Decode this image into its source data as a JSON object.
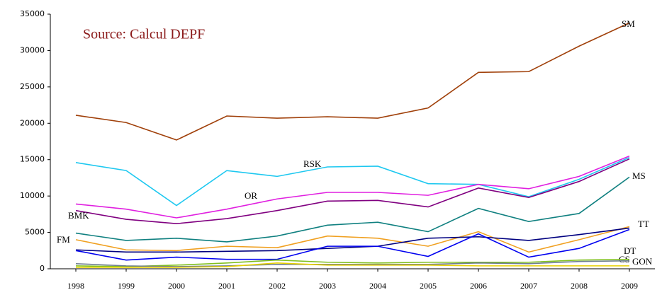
{
  "chart_data": {
    "type": "line",
    "annotation": "Source: Calcul DEPF",
    "categories": [
      "1998",
      "1999",
      "2000",
      "2001",
      "2002",
      "2003",
      "2004",
      "2005",
      "2006",
      "2007",
      "2008",
      "2009"
    ],
    "ylim": [
      0,
      35000
    ],
    "yticks": [
      0,
      5000,
      10000,
      15000,
      20000,
      25000,
      30000,
      35000
    ],
    "grid": false,
    "series": [
      {
        "name": "SM",
        "color": "#a0400a",
        "values": [
          21100,
          20100,
          17700,
          21000,
          20700,
          20900,
          20700,
          22100,
          27000,
          27100,
          30600,
          33800
        ]
      },
      {
        "name": "RSK",
        "color": "#1ec8f0",
        "values": [
          14600,
          13500,
          8700,
          13500,
          12700,
          14000,
          14100,
          11700,
          11600,
          9900,
          12300,
          15300
        ]
      },
      {
        "name": "OR",
        "color": "#e020e0",
        "values": [
          8900,
          8200,
          7000,
          8200,
          9600,
          10500,
          10500,
          10100,
          11600,
          11000,
          12700,
          15500
        ]
      },
      {
        "name": "BMK",
        "color": "#800080",
        "values": [
          8000,
          6800,
          6200,
          6900,
          8000,
          9300,
          9400,
          8500,
          11100,
          9800,
          12000,
          15100
        ]
      },
      {
        "name": "MS",
        "color": "#108080",
        "values": [
          4900,
          3900,
          4200,
          3700,
          4500,
          6000,
          6400,
          5100,
          8300,
          6500,
          7600,
          12600
        ]
      },
      {
        "name": "FM",
        "color": "#f0a020",
        "values": [
          4000,
          2600,
          2500,
          3100,
          2900,
          4500,
          4200,
          3100,
          5100,
          2300,
          4000,
          5800
        ]
      },
      {
        "name": "TT",
        "color": "#000080",
        "values": [
          2600,
          2300,
          2300,
          2400,
          2500,
          2800,
          3100,
          4200,
          4400,
          3900,
          4700,
          5600
        ]
      },
      {
        "name": "CS",
        "color": "#0000f0",
        "values": [
          2500,
          1200,
          1600,
          1300,
          1300,
          3100,
          3100,
          1700,
          4800,
          1600,
          2800,
          5400
        ]
      },
      {
        "name": "DT",
        "color": "#80c020",
        "values": [
          400,
          300,
          500,
          800,
          1200,
          900,
          800,
          900,
          900,
          900,
          1200,
          1300
        ]
      },
      {
        "name": "GON",
        "color": "#708090",
        "values": [
          700,
          400,
          300,
          400,
          600,
          600,
          600,
          600,
          800,
          700,
          1000,
          1100
        ]
      },
      {
        "color": "#e8d000",
        "values": [
          200,
          200,
          200,
          300,
          800,
          500,
          500,
          500,
          400,
          400,
          400,
          400
        ]
      }
    ]
  }
}
